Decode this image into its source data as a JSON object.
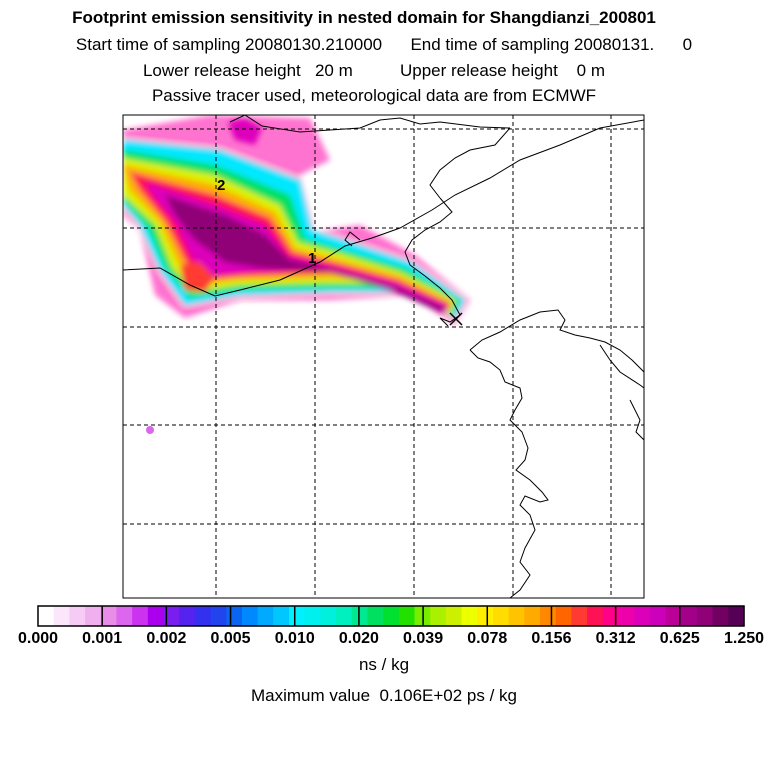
{
  "header": {
    "title": "Footprint emission sensitivity in nested domain for Shangdianzi_200801",
    "sampling_line": "Start time of sampling 20080130.210000      End time of sampling 20080131.      0",
    "release_line": "Lower release height   20 m          Upper release height    0 m",
    "tracer_line": "Passive tracer used, meteorological data are from ECMWF"
  },
  "map": {
    "point_labels": [
      "2",
      "1"
    ]
  },
  "colorbar": {
    "tick_labels": [
      "0.000",
      "0.001",
      "0.002",
      "0.005",
      "0.010",
      "0.020",
      "0.039",
      "0.078",
      "0.156",
      "0.312",
      "0.625",
      "1.250"
    ],
    "colors": [
      "#ffffff",
      "#fbe6fb",
      "#f6ccf6",
      "#f0b0f0",
      "#e88ee8",
      "#dd66ee",
      "#cc33f0",
      "#aa00ee",
      "#7a1ef0",
      "#5522f0",
      "#3330f0",
      "#2244ee",
      "#0a66f0",
      "#0088ff",
      "#00aaff",
      "#00c8ff",
      "#00f0ff",
      "#00f0f0",
      "#00f0dd",
      "#00f0c0",
      "#00e890",
      "#00e060",
      "#00e030",
      "#22e000",
      "#77ee00",
      "#aaf000",
      "#ccf000",
      "#eeff00",
      "#ffee00",
      "#ffdd00",
      "#ffc400",
      "#ffaa00",
      "#ff8800",
      "#ff6600",
      "#ff3a33",
      "#ff1155",
      "#ff0088",
      "#ee00aa",
      "#dd00bb",
      "#cc00bb",
      "#bb0099",
      "#a20088",
      "#900077",
      "#720060",
      "#550055"
    ],
    "units": "ns / kg"
  },
  "footer": {
    "max_value": "Maximum value  0.106E+02 ps / kg"
  }
}
